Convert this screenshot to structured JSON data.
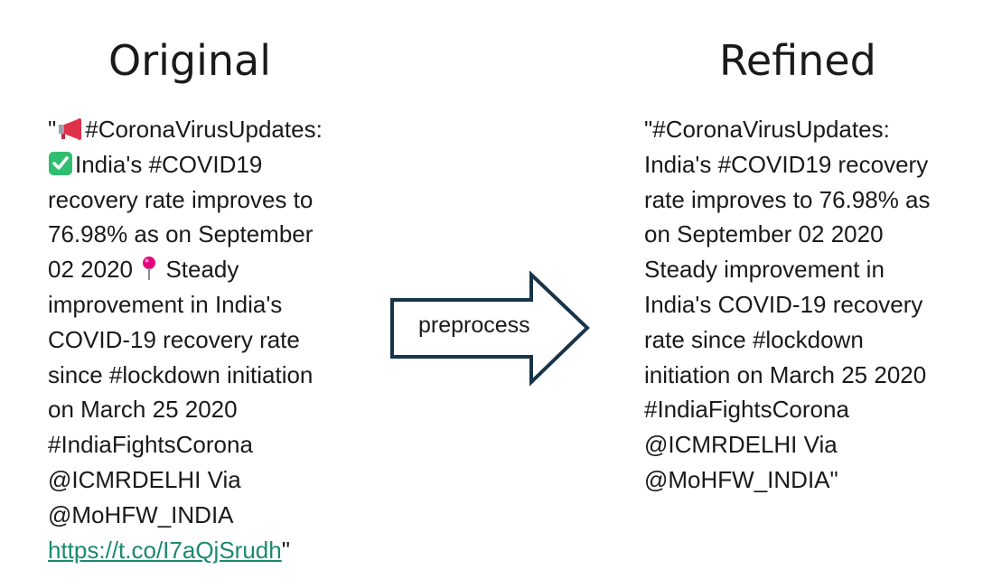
{
  "headings": {
    "original": "Original",
    "refined": "Refined"
  },
  "arrow": {
    "label": "preprocess",
    "stroke_color": "#17344a"
  },
  "original": {
    "lines": [
      {
        "pre": "\"",
        "icon": "megaphone-icon",
        "post": "#CoronaVirusUpdates:"
      },
      {
        "pre": "",
        "icon": "check-mark-icon",
        "post": "India's #COVID19"
      },
      {
        "pre": "recovery rate improves to"
      },
      {
        "pre": "76.98% as on September"
      },
      {
        "pre": "02 2020 ",
        "icon": "pushpin-icon",
        "post": " Steady"
      },
      {
        "pre": "improvement in India's"
      },
      {
        "pre": "COVID-19 recovery rate"
      },
      {
        "pre": "since #lockdown initiation"
      },
      {
        "pre": "on March 25 2020"
      },
      {
        "pre": "#IndiaFightsCorona"
      },
      {
        "pre": "@ICMRDELHI Via"
      },
      {
        "pre": "@MoHFW_INDIA"
      }
    ],
    "link": "https://t.co/I7aQjSrudh",
    "closing_quote": "\"",
    "colors": {
      "link": "#1a8a6e",
      "megaphone": "#e0314a",
      "check": "#2fbf71",
      "pin": "#e5007d"
    }
  },
  "refined": {
    "lines": [
      "\"#CoronaVirusUpdates:",
      "India's #COVID19 recovery",
      "rate improves to 76.98% as",
      "on September 02 2020",
      "Steady improvement in",
      "India's COVID-19 recovery",
      "rate since #lockdown",
      "initiation on March 25 2020",
      "#IndiaFightsCorona",
      "@ICMRDELHI Via",
      "@MoHFW_INDIA\""
    ]
  }
}
